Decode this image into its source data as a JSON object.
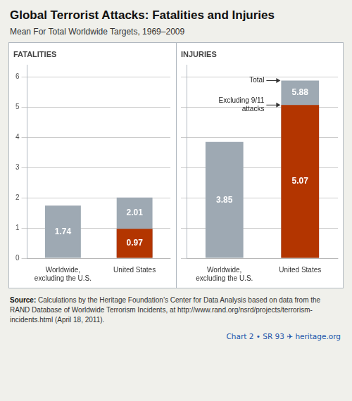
{
  "title": "Global Terrorist Attacks: Fatalities and Injuries",
  "subtitle": "Mean For Total Worldwide Targets, 1969–2009",
  "source": "Source: Calculations by the Heritage Foundation’s Center for Data Analysis based on data from the RAND Database of Worldwide Terrorism Incidents, at http://www.rand.org/nsrd/projects/terrorism-incidents.html (April 18, 2011).",
  "footer": "Chart 2 • SR 93  ✈  heritage.org",
  "chart_data": [
    {
      "type": "bar",
      "title": "FATALITIES",
      "categories": [
        "Worldwide,\nexcluding the U.S.",
        "United States"
      ],
      "series": [
        {
          "color": "#9ea9b3",
          "values": [
            1.74,
            2.01
          ]
        },
        {
          "color": "#b33500",
          "values": [
            0.0,
            0.97
          ]
        }
      ],
      "ylim": [
        0,
        6.4
      ],
      "yticks": [
        0,
        1,
        2,
        3,
        4,
        5,
        6
      ],
      "grid": true,
      "data_labels": true
    },
    {
      "type": "bar",
      "title": "INJURIES",
      "categories": [
        "Worldwide,\nexcluding the U.S.",
        "United States"
      ],
      "series": [
        {
          "color": "#9ea9b3",
          "values": [
            3.85,
            5.88
          ]
        },
        {
          "color": "#b33500",
          "values": [
            0.0,
            5.07
          ]
        }
      ],
      "ylim": [
        0,
        6.4
      ],
      "yticks": [
        0,
        1,
        2,
        3,
        4,
        5,
        6
      ],
      "grid": true,
      "data_labels": true,
      "tick_labels": "x",
      "annotations": [
        {
          "text": "Total",
          "category": "United States",
          "y": 5.88
        },
        {
          "text": "Excluding 9/11\nattacks",
          "category": "United States",
          "y": 5.07
        }
      ]
    }
  ]
}
